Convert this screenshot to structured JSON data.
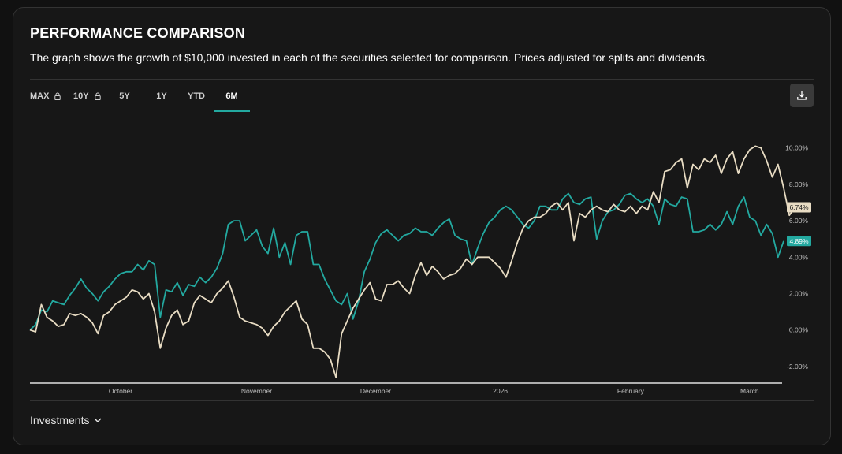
{
  "header": {
    "title": "PERFORMANCE COMPARISON",
    "subtitle": "The graph shows the growth of $10,000 invested in each of the securities selected for comparison. Prices adjusted for splits and dividends."
  },
  "tabs": [
    {
      "label": "MAX",
      "locked": true,
      "active": false
    },
    {
      "label": "10Y",
      "locked": true,
      "active": false
    },
    {
      "label": "5Y",
      "locked": false,
      "active": false
    },
    {
      "label": "1Y",
      "locked": false,
      "active": false
    },
    {
      "label": "YTD",
      "locked": false,
      "active": false
    },
    {
      "label": "6M",
      "locked": false,
      "active": true
    }
  ],
  "icons": {
    "lock": "lock-icon",
    "download": "download-icon",
    "chevron": "chevron-down-icon"
  },
  "colors": {
    "series_teal": "#23a9a0",
    "series_beige": "#e8dcc3",
    "active_tab": "#23a9a0"
  },
  "footer": {
    "investments_label": "Investments"
  },
  "chart_data": {
    "type": "line",
    "title": "",
    "xlabel": "",
    "ylabel": "",
    "y_tick_labels": [
      "-2.00%",
      "0.00%",
      "2.00%",
      "4.00%",
      "6.00%",
      "8.00%",
      "10.00%"
    ],
    "y_ticks": [
      -2,
      0,
      2,
      4,
      6,
      8,
      10
    ],
    "ylim": [
      -3,
      11.2
    ],
    "y_axis_position": "right",
    "x_tick_labels": [
      {
        "label": "October",
        "i": 16
      },
      {
        "label": "November",
        "i": 40
      },
      {
        "label": "December",
        "i": 61
      },
      {
        "label": "2026",
        "i": 83
      },
      {
        "label": "February",
        "i": 106
      },
      {
        "label": "March",
        "i": 127
      }
    ],
    "point_count": 134,
    "grid": false,
    "series": [
      {
        "color": "#23a9a0",
        "end_label": "4.89%",
        "values": [
          0,
          0.3,
          1.1,
          1.0,
          1.6,
          1.5,
          1.4,
          1.9,
          2.3,
          2.8,
          2.3,
          2.0,
          1.6,
          2.1,
          2.4,
          2.8,
          3.1,
          3.2,
          3.2,
          3.6,
          3.3,
          3.8,
          3.6,
          0.7,
          2.2,
          2.1,
          2.6,
          1.9,
          2.5,
          2.4,
          2.9,
          2.6,
          2.9,
          3.4,
          4.2,
          5.8,
          6.0,
          6.0,
          4.9,
          5.2,
          5.5,
          4.6,
          4.2,
          5.6,
          4.0,
          4.8,
          3.6,
          5.2,
          5.4,
          5.4,
          3.6,
          3.6,
          2.8,
          2.2,
          1.6,
          1.4,
          2.0,
          0.6,
          1.6,
          3.2,
          3.9,
          4.8,
          5.3,
          5.5,
          5.2,
          4.9,
          5.2,
          5.3,
          5.6,
          5.4,
          5.4,
          5.2,
          5.6,
          5.9,
          6.1,
          5.2,
          5.0,
          4.9,
          3.6,
          4.5,
          5.3,
          5.9,
          6.2,
          6.6,
          6.8,
          6.6,
          6.2,
          5.8,
          5.6,
          6.0,
          6.8,
          6.8,
          6.6,
          6.6,
          7.2,
          7.5,
          7.0,
          6.9,
          7.2,
          7.3,
          5.0,
          6.0,
          6.5,
          6.6,
          6.9,
          7.4,
          7.5,
          7.2,
          7.0,
          7.2,
          6.8,
          5.8,
          7.2,
          6.9,
          6.8,
          7.3,
          7.2,
          5.4,
          5.4,
          5.5,
          5.8,
          5.5,
          5.8,
          6.5,
          5.8,
          6.8,
          7.3,
          6.2,
          6.0,
          5.2,
          5.8,
          5.3,
          4.0,
          4.89
        ]
      },
      {
        "color": "#e8dcc3",
        "end_label": "6.74%",
        "values": [
          0,
          -0.1,
          1.4,
          0.7,
          0.5,
          0.2,
          0.3,
          0.9,
          0.8,
          0.9,
          0.7,
          0.4,
          -0.2,
          0.8,
          1.0,
          1.4,
          1.6,
          1.8,
          2.2,
          2.1,
          1.7,
          2.0,
          1.0,
          -1.0,
          0.1,
          0.8,
          1.1,
          0.3,
          0.5,
          1.5,
          1.9,
          1.7,
          1.5,
          2.0,
          2.3,
          2.7,
          1.8,
          0.7,
          0.5,
          0.4,
          0.3,
          0.1,
          -0.3,
          0.2,
          0.5,
          1.0,
          1.3,
          1.6,
          0.6,
          0.3,
          -1.0,
          -1.0,
          -1.2,
          -1.6,
          -2.6,
          -0.2,
          0.5,
          1.2,
          1.7,
          2.2,
          2.6,
          1.7,
          1.6,
          2.5,
          2.5,
          2.7,
          2.3,
          2.0,
          3.0,
          3.7,
          3.0,
          3.5,
          3.2,
          2.8,
          3.0,
          3.1,
          3.4,
          3.9,
          3.6,
          4.0,
          4.0,
          4.0,
          3.7,
          3.4,
          2.9,
          3.8,
          4.8,
          5.6,
          6.0,
          6.2,
          6.2,
          6.4,
          6.8,
          7.0,
          6.6,
          7.0,
          4.9,
          6.4,
          6.2,
          6.6,
          6.8,
          6.6,
          6.5,
          6.9,
          6.6,
          6.5,
          6.8,
          6.4,
          6.8,
          6.6,
          7.6,
          7.0,
          8.7,
          8.8,
          9.2,
          9.4,
          7.8,
          9.1,
          8.8,
          9.4,
          9.2,
          9.6,
          8.6,
          9.4,
          9.8,
          8.6,
          9.4,
          9.9,
          10.1,
          10.0,
          9.3,
          8.4,
          9.1,
          7.8,
          6.3,
          6.74
        ]
      }
    ]
  }
}
